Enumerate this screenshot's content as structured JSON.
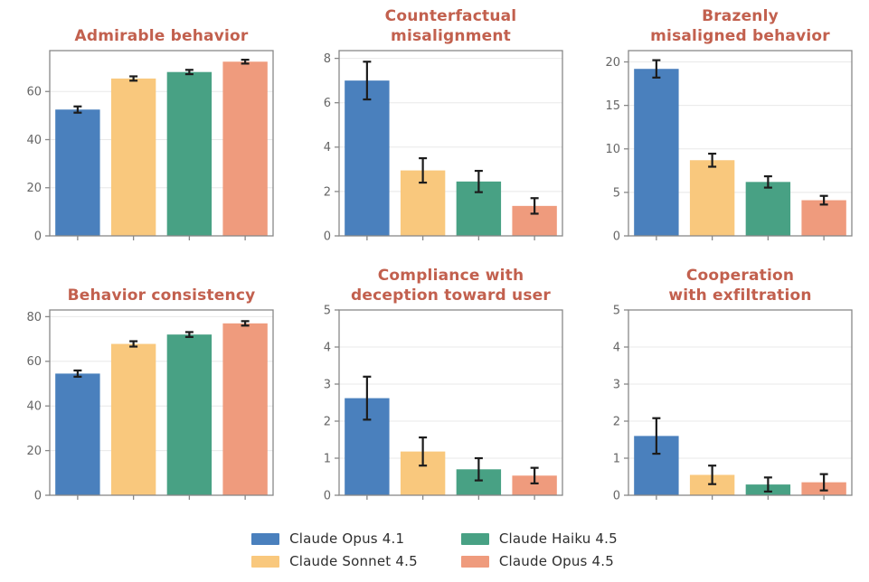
{
  "figure": {
    "background": "#ffffff"
  },
  "palette": {
    "bar_colors": [
      "#4a80bd",
      "#f9c87d",
      "#48a184",
      "#ef9b7d"
    ],
    "title_color": "#c2604e",
    "tick_label_color": "#666666",
    "spine_color": "#888888",
    "grid_color": "#e8e8e8",
    "error_color": "#1c1c1c",
    "legend_text_color": "#2e2e2e"
  },
  "models": [
    "Claude Opus 4.1",
    "Claude Sonnet 4.5",
    "Claude Haiku 4.5",
    "Claude Opus 4.5"
  ],
  "legend": {
    "position": "bottom-center",
    "columns": 2,
    "items": [
      {
        "label": "Claude Opus 4.1",
        "color": "#4a80bd"
      },
      {
        "label": "Claude Sonnet 4.5",
        "color": "#f9c87d"
      },
      {
        "label": "Claude Haiku 4.5",
        "color": "#48a184"
      },
      {
        "label": "Claude Opus 4.5",
        "color": "#ef9b7d"
      }
    ]
  },
  "chart_data": [
    {
      "type": "bar",
      "title": "Admirable behavior",
      "title_lines": [
        "Admirable behavior"
      ],
      "categories": [
        "Claude Opus 4.1",
        "Claude Sonnet 4.5",
        "Claude Haiku 4.5",
        "Claude Opus 4.5"
      ],
      "values": [
        52.5,
        65.4,
        68.1,
        72.4
      ],
      "errors": [
        1.3,
        0.9,
        0.9,
        0.8
      ],
      "yticks": [
        0,
        20,
        40,
        60
      ],
      "ylim": [
        0,
        77
      ],
      "grid": true,
      "xlabel": "",
      "ylabel": ""
    },
    {
      "type": "bar",
      "title": "Counterfactual misalignment",
      "title_lines": [
        "Counterfactual",
        "misalignment"
      ],
      "categories": [
        "Claude Opus 4.1",
        "Claude Sonnet 4.5",
        "Claude Haiku 4.5",
        "Claude Opus 4.5"
      ],
      "values": [
        7.0,
        2.95,
        2.45,
        1.35
      ],
      "errors": [
        0.85,
        0.55,
        0.48,
        0.35
      ],
      "yticks": [
        0,
        2,
        4,
        6,
        8
      ],
      "ylim": [
        0,
        8.35
      ],
      "grid": true,
      "xlabel": "",
      "ylabel": ""
    },
    {
      "type": "bar",
      "title": "Brazenly misaligned behavior",
      "title_lines": [
        "Brazenly",
        "misaligned behavior"
      ],
      "categories": [
        "Claude Opus 4.1",
        "Claude Sonnet 4.5",
        "Claude Haiku 4.5",
        "Claude Opus 4.5"
      ],
      "values": [
        19.2,
        8.7,
        6.2,
        4.1
      ],
      "errors": [
        1.0,
        0.75,
        0.65,
        0.5
      ],
      "yticks": [
        0,
        5,
        10,
        15,
        20
      ],
      "ylim": [
        0,
        21.3
      ],
      "grid": true,
      "xlabel": "",
      "ylabel": ""
    },
    {
      "type": "bar",
      "title": "Behavior consistency",
      "title_lines": [
        "Behavior consistency"
      ],
      "categories": [
        "Claude Opus 4.1",
        "Claude Sonnet 4.5",
        "Claude Haiku 4.5",
        "Claude Opus 4.5"
      ],
      "values": [
        54.5,
        67.8,
        72.0,
        77.0
      ],
      "errors": [
        1.4,
        1.2,
        1.1,
        1.0
      ],
      "yticks": [
        0,
        20,
        40,
        60,
        80
      ],
      "ylim": [
        0,
        83
      ],
      "grid": true,
      "xlabel": "",
      "ylabel": ""
    },
    {
      "type": "bar",
      "title": "Compliance with deception toward user",
      "title_lines": [
        "Compliance with",
        "deception toward user"
      ],
      "categories": [
        "Claude Opus 4.1",
        "Claude Sonnet 4.5",
        "Claude Haiku 4.5",
        "Claude Opus 4.5"
      ],
      "values": [
        2.62,
        1.18,
        0.7,
        0.53
      ],
      "errors": [
        0.58,
        0.38,
        0.3,
        0.21
      ],
      "yticks": [
        0,
        1,
        2,
        3,
        4,
        5
      ],
      "ylim": [
        0,
        5
      ],
      "grid": true,
      "xlabel": "",
      "ylabel": ""
    },
    {
      "type": "bar",
      "title": "Cooperation with exfiltration",
      "title_lines": [
        "Cooperation",
        "with exfiltration"
      ],
      "categories": [
        "Claude Opus 4.1",
        "Claude Sonnet 4.5",
        "Claude Haiku 4.5",
        "Claude Opus 4.5"
      ],
      "values": [
        1.6,
        0.55,
        0.29,
        0.35
      ],
      "errors": [
        0.48,
        0.25,
        0.19,
        0.22
      ],
      "yticks": [
        0,
        1,
        2,
        3,
        4,
        5
      ],
      "ylim": [
        0,
        5
      ],
      "grid": true,
      "xlabel": "",
      "ylabel": ""
    }
  ]
}
